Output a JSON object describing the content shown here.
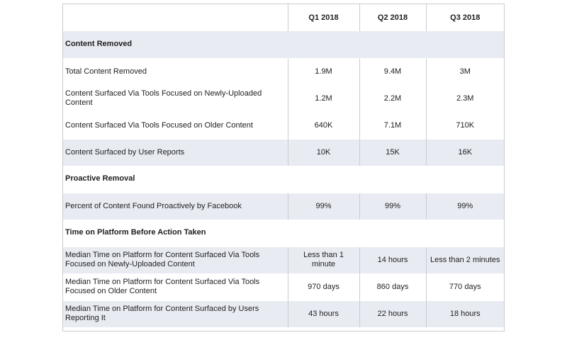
{
  "columns": [
    "Q1 2018",
    "Q2 2018",
    "Q3 2018"
  ],
  "sections": [
    {
      "title": "Content Removed",
      "rows": [
        {
          "label": "Total Content Removed",
          "values": [
            "1.9M",
            "9.4M",
            "3M"
          ]
        },
        {
          "label": "Content Surfaced Via Tools Focused on Newly-Uploaded Content",
          "values": [
            "1.2M",
            "2.2M",
            "2.3M"
          ]
        },
        {
          "label": "Content Surfaced Via Tools Focused on Older Content",
          "values": [
            "640K",
            "7.1M",
            "710K"
          ]
        },
        {
          "label": "Content Surfaced by User Reports",
          "values": [
            "10K",
            "15K",
            "16K"
          ]
        }
      ]
    },
    {
      "title": "Proactive Removal",
      "rows": [
        {
          "label": "Percent of Content Found Proactively by Facebook",
          "values": [
            "99%",
            "99%",
            "99%"
          ]
        }
      ]
    },
    {
      "title": "Time on Platform Before Action Taken",
      "rows": [
        {
          "label": "Median Time on Platform for Content Surfaced Via Tools Focused on Newly-Uploaded Content",
          "values": [
            "Less than 1 minute",
            "14 hours",
            "Less than 2 minutes"
          ]
        },
        {
          "label": "Median Time on Platform for Content Surfaced Via Tools Focused on Older Content",
          "values": [
            "970 days",
            "860 days",
            "770 days"
          ]
        },
        {
          "label": "Median Time on Platform for Content Surfaced by Users Reporting It",
          "values": [
            "43 hours",
            "22 hours",
            "18 hours"
          ]
        }
      ]
    }
  ]
}
